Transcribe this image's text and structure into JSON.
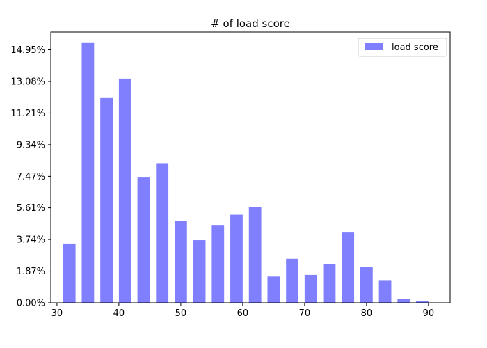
{
  "chart_data": {
    "type": "bar",
    "title": "# of load score",
    "xlabel": "",
    "ylabel": "",
    "xlim": [
      29,
      93.5
    ],
    "ylim": [
      0,
      16.0
    ],
    "bar_width": 2.0,
    "x": [
      32,
      35,
      38,
      41,
      44,
      47,
      50,
      53,
      56,
      59,
      62,
      65,
      68,
      71,
      74,
      77,
      80,
      83,
      86,
      89
    ],
    "series": [
      {
        "name": "load score",
        "values": [
          3.5,
          15.35,
          12.1,
          13.25,
          7.4,
          8.25,
          4.85,
          3.7,
          4.6,
          5.2,
          5.65,
          1.55,
          2.6,
          1.65,
          2.3,
          4.15,
          2.1,
          1.3,
          0.22,
          0.1
        ]
      }
    ],
    "x_ticks": [
      30,
      40,
      50,
      60,
      70,
      80,
      90
    ],
    "y_ticks": [
      {
        "value": 0.0,
        "label": "0.00%"
      },
      {
        "value": 1.87,
        "label": "1.87%"
      },
      {
        "value": 3.74,
        "label": "3.74%"
      },
      {
        "value": 5.61,
        "label": "5.61%"
      },
      {
        "value": 7.47,
        "label": "7.47%"
      },
      {
        "value": 9.34,
        "label": "9.34%"
      },
      {
        "value": 11.21,
        "label": "11.21%"
      },
      {
        "value": 13.08,
        "label": "13.08%"
      },
      {
        "value": 14.95,
        "label": "14.95%"
      }
    ],
    "legend": "top-right",
    "grid": false,
    "colors": {
      "bar": "#8080ff",
      "axis": "#000000",
      "background": "#ffffff"
    }
  }
}
